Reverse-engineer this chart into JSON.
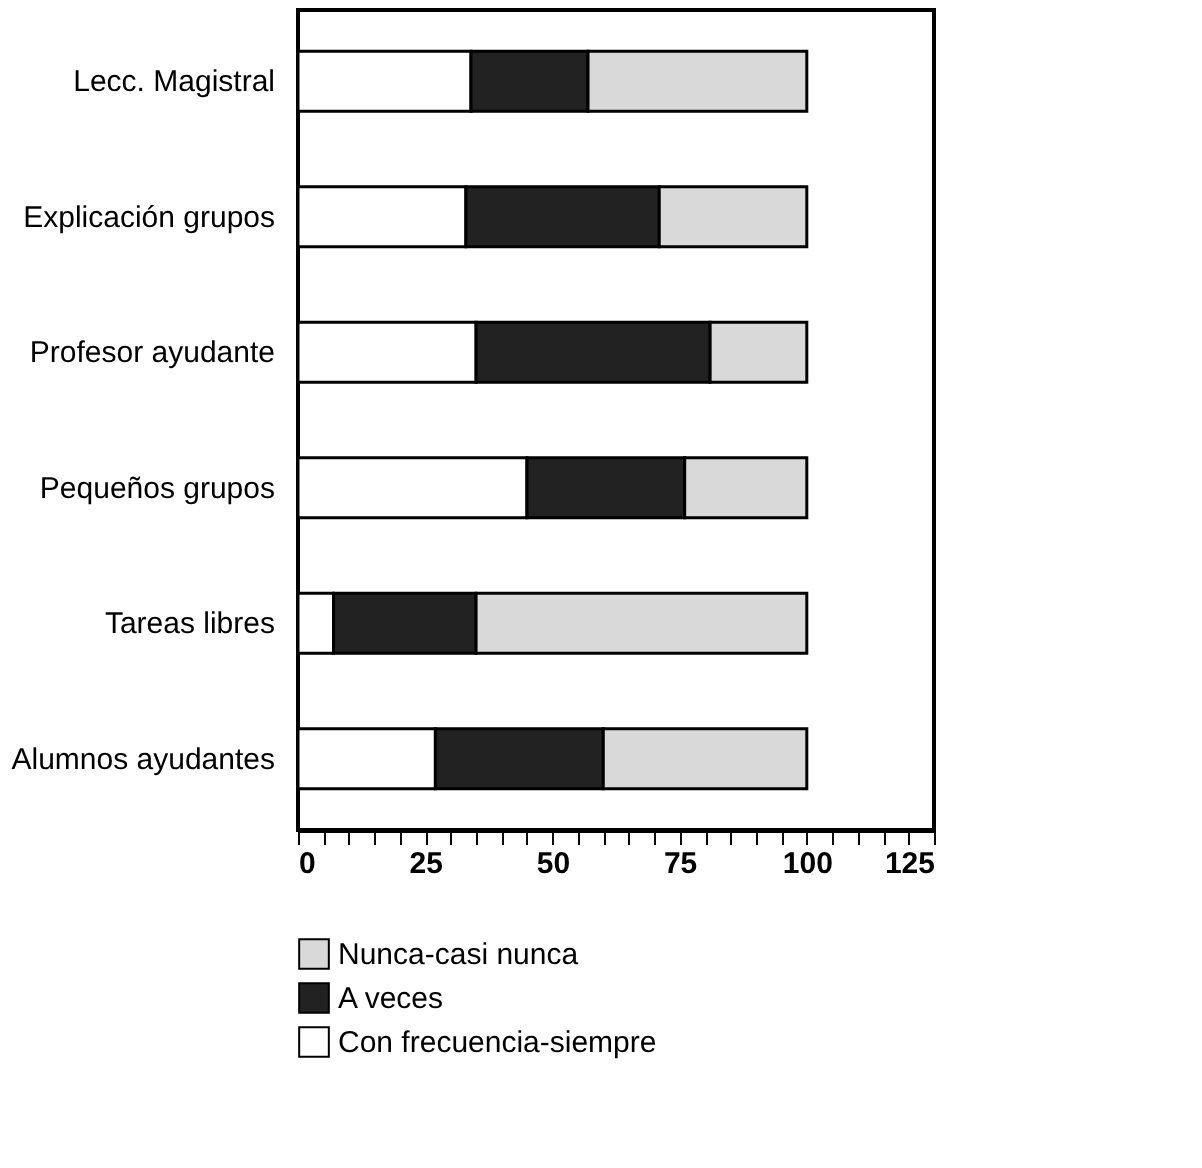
{
  "chart_data": {
    "type": "bar",
    "orientation": "horizontal",
    "stacked": true,
    "categories": [
      "Lecc. Magistral",
      "Explicación grupos",
      "Profesor ayudante",
      "Pequeños grupos",
      "Tareas libres",
      "Alumnos ayudantes"
    ],
    "series": [
      {
        "name": "Con frecuencia-siempre",
        "color": "#ffffff",
        "values": [
          34,
          33,
          35,
          45,
          7,
          27
        ]
      },
      {
        "name": "A veces",
        "color": "#222222",
        "values": [
          23,
          38,
          46,
          31,
          28,
          33
        ]
      },
      {
        "name": "Nunca-casi nunca",
        "color": "#d9d9d9",
        "values": [
          43,
          29,
          19,
          24,
          65,
          40
        ]
      }
    ],
    "xlim": [
      0,
      125
    ],
    "xticks": [
      0,
      {
        "value": 5,
        "label": null
      },
      {
        "value": 10,
        "label": null
      },
      {
        "value": 15,
        "label": null
      },
      {
        "value": 20,
        "label": null
      },
      25,
      {
        "value": 30,
        "label": null
      },
      {
        "value": 35,
        "label": null
      },
      {
        "value": 40,
        "label": null
      },
      {
        "value": 45,
        "label": null
      },
      50,
      {
        "value": 55,
        "label": null
      },
      {
        "value": 60,
        "label": null
      },
      {
        "value": 65,
        "label": null
      },
      {
        "value": 70,
        "label": null
      },
      75,
      {
        "value": 80,
        "label": null
      },
      {
        "value": 85,
        "label": null
      },
      {
        "value": 90,
        "label": null
      },
      {
        "value": 95,
        "label": null
      },
      100,
      {
        "value": 105,
        "label": null
      },
      {
        "value": 110,
        "label": null
      },
      {
        "value": 115,
        "label": null
      },
      {
        "value": 120,
        "label": null
      },
      125
    ],
    "grid": false,
    "legend": "bottom"
  }
}
